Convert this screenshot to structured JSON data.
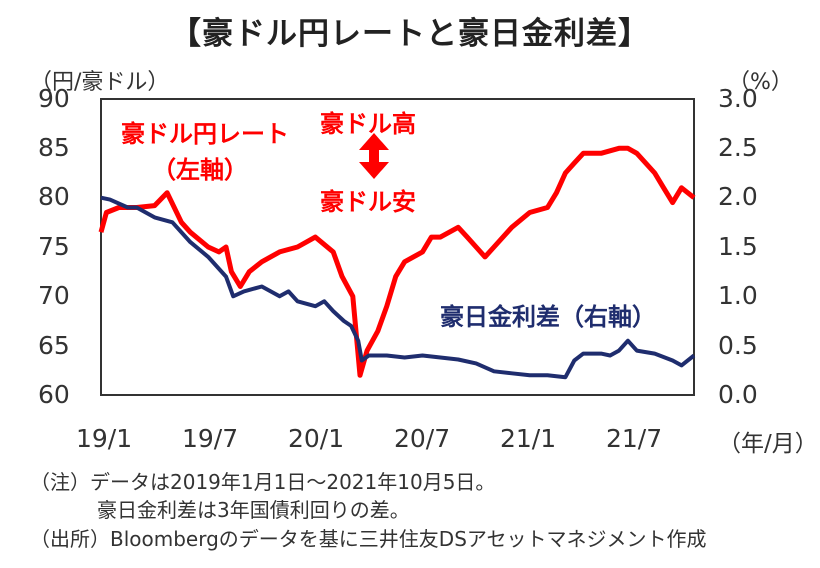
{
  "title": "【豪ドル円レートと豪日金利差】",
  "chart_data": {
    "type": "line",
    "title": "【豪ドル円レートと豪日金利差】",
    "left_unit": "（円/豪ドル）",
    "right_unit": "（%）",
    "x_unit": "（年/月）",
    "x_ticks": [
      "19/1",
      "19/7",
      "20/1",
      "20/7",
      "21/1",
      "21/7"
    ],
    "y_left": {
      "ticks": [
        "90",
        "85",
        "80",
        "75",
        "70",
        "65",
        "60"
      ],
      "range": [
        60,
        90
      ]
    },
    "y_right": {
      "ticks": [
        "3.0",
        "2.5",
        "2.0",
        "1.5",
        "1.0",
        "0.5",
        "0.0"
      ],
      "range": [
        0,
        3
      ]
    },
    "x_range_months": [
      0,
      33.2
    ],
    "series": [
      {
        "name": "豪ドル円レート（左軸）",
        "axis": "left",
        "color": "#ff0000",
        "points": [
          [
            0,
            76.5
          ],
          [
            0.3,
            78.5
          ],
          [
            1,
            79.0
          ],
          [
            2,
            79.0
          ],
          [
            3,
            79.2
          ],
          [
            3.7,
            80.5
          ],
          [
            4.5,
            77.5
          ],
          [
            5,
            76.5
          ],
          [
            6,
            75.0
          ],
          [
            6.6,
            74.5
          ],
          [
            7,
            75.0
          ],
          [
            7.3,
            72.5
          ],
          [
            7.8,
            71.0
          ],
          [
            8.3,
            72.5
          ],
          [
            9,
            73.5
          ],
          [
            10,
            74.5
          ],
          [
            11,
            75.0
          ],
          [
            12,
            76.0
          ],
          [
            13,
            74.5
          ],
          [
            13.5,
            72.0
          ],
          [
            14.1,
            70.0
          ],
          [
            14.5,
            62.0
          ],
          [
            14.9,
            64.5
          ],
          [
            15.5,
            66.5
          ],
          [
            16,
            69.0
          ],
          [
            16.5,
            72.0
          ],
          [
            17,
            73.5
          ],
          [
            18,
            74.5
          ],
          [
            18.5,
            76.0
          ],
          [
            19,
            76.0
          ],
          [
            20,
            77.0
          ],
          [
            20.5,
            76.0
          ],
          [
            21,
            75.0
          ],
          [
            21.5,
            74.0
          ],
          [
            22,
            75.0
          ],
          [
            23,
            77.0
          ],
          [
            24,
            78.5
          ],
          [
            25,
            79.0
          ],
          [
            25.5,
            80.5
          ],
          [
            26,
            82.5
          ],
          [
            26.5,
            83.5
          ],
          [
            27,
            84.5
          ],
          [
            28,
            84.5
          ],
          [
            29,
            85.0
          ],
          [
            29.5,
            85.0
          ],
          [
            30,
            84.5
          ],
          [
            31,
            82.5
          ],
          [
            31.5,
            81.0
          ],
          [
            32,
            79.5
          ],
          [
            32.5,
            81.0
          ],
          [
            33.2,
            80.0
          ]
        ]
      },
      {
        "name": "豪日金利差（右軸）",
        "axis": "right",
        "color": "#1f2d6e",
        "points": [
          [
            0,
            2.0
          ],
          [
            0.5,
            1.98
          ],
          [
            1.5,
            1.9
          ],
          [
            2,
            1.9
          ],
          [
            3,
            1.8
          ],
          [
            4,
            1.75
          ],
          [
            5,
            1.55
          ],
          [
            6,
            1.4
          ],
          [
            7,
            1.2
          ],
          [
            7.4,
            1.0
          ],
          [
            8,
            1.05
          ],
          [
            9,
            1.1
          ],
          [
            10,
            1.0
          ],
          [
            10.5,
            1.05
          ],
          [
            11,
            0.95
          ],
          [
            12,
            0.9
          ],
          [
            12.5,
            0.95
          ],
          [
            13,
            0.85
          ],
          [
            13.6,
            0.75
          ],
          [
            14,
            0.7
          ],
          [
            14.4,
            0.55
          ],
          [
            14.6,
            0.35
          ],
          [
            15,
            0.4
          ],
          [
            16,
            0.4
          ],
          [
            17,
            0.38
          ],
          [
            18,
            0.4
          ],
          [
            19,
            0.38
          ],
          [
            20,
            0.36
          ],
          [
            21,
            0.32
          ],
          [
            22,
            0.24
          ],
          [
            23,
            0.22
          ],
          [
            24,
            0.2
          ],
          [
            25,
            0.2
          ],
          [
            26,
            0.18
          ],
          [
            26.5,
            0.35
          ],
          [
            27,
            0.42
          ],
          [
            28,
            0.42
          ],
          [
            28.5,
            0.4
          ],
          [
            29,
            0.45
          ],
          [
            29.5,
            0.55
          ],
          [
            30,
            0.45
          ],
          [
            31,
            0.42
          ],
          [
            32,
            0.35
          ],
          [
            32.5,
            0.3
          ],
          [
            33.2,
            0.4
          ]
        ]
      }
    ],
    "annotations": {
      "red_label_1": "豪ドル円レート",
      "red_label_2": "（左軸）",
      "high_label": "豪ドル高",
      "low_label": "豪ドル安",
      "navy_label": "豪日金利差（右軸）"
    }
  },
  "notes": {
    "line1": "（注）データは2019年1月1日～2021年10月5日。",
    "line2": "豪日金利差は3年国債利回りの差。",
    "line3": "（出所）Bloombergのデータを基に三井住友DSアセットマネジメント作成"
  }
}
